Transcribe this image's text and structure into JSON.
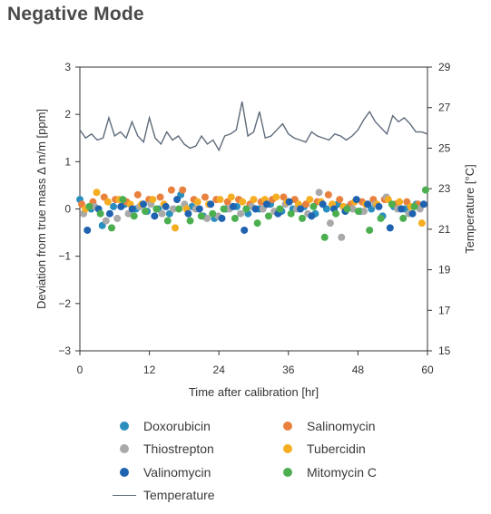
{
  "page_title": "Negative Mode",
  "chart_data": {
    "type": "scatter",
    "xlabel": "Time after calibration [hr]",
    "ylabel": "Deviation from true mass Δ m/m [ppm]",
    "y2label": "Temperature [°C]",
    "xlim": [
      0,
      60
    ],
    "ylim": [
      -3,
      3
    ],
    "y2lim": [
      15,
      29
    ],
    "xticks": [
      "0",
      "12",
      "24",
      "36",
      "48",
      "60"
    ],
    "yticks": [
      "3",
      "2",
      "1",
      "0",
      "−1",
      "−2",
      "−3"
    ],
    "y2ticks": [
      "29",
      "27",
      "25",
      "23",
      "21",
      "19",
      "17",
      "15"
    ],
    "series": [
      {
        "name": "Doxorubicin",
        "color": "#2a8fbf",
        "values": [
          0.2,
          0.0,
          -0.35,
          0.05,
          0.1,
          0.0,
          -0.05,
          0.0,
          -0.1,
          0.3,
          0.05,
          -0.15,
          -0.2,
          0.0,
          0.05,
          -0.1,
          0.0,
          0.1,
          -0.05,
          0.0,
          0.05,
          -0.1,
          0.0,
          0.1,
          0.05,
          -0.05,
          0.0,
          -0.15,
          0.05,
          0.0,
          0.1
        ]
      },
      {
        "name": "Salinomycin",
        "color": "#e8803e",
        "values": [
          0.1,
          0.15,
          0.25,
          0.2,
          0.15,
          0.3,
          0.2,
          0.25,
          0.4,
          0.4,
          0.2,
          0.25,
          0.2,
          0.15,
          0.2,
          0.1,
          0.15,
          0.2,
          0.25,
          0.2,
          0.1,
          0.15,
          0.3,
          0.2,
          0.1,
          0.15,
          0.2,
          0.2,
          0.1,
          0.15,
          0.1
        ]
      },
      {
        "name": "Thiostrepton",
        "color": "#a9a9a9",
        "values": [
          -0.1,
          0.05,
          -0.25,
          -0.2,
          -0.1,
          0.05,
          0.1,
          -0.1,
          0.0,
          0.1,
          0.0,
          -0.2,
          -0.15,
          0.0,
          -0.1,
          0.05,
          0.0,
          -0.05,
          0.1,
          0.0,
          -0.1,
          0.35,
          -0.3,
          -0.6,
          0.0,
          -0.05,
          0.1,
          0.25,
          0.0,
          -0.1,
          0.0
        ]
      },
      {
        "name": "Tubercidin",
        "color": "#f5ad22",
        "values": [
          0.0,
          0.35,
          0.15,
          0.2,
          0.1,
          0.1,
          0.2,
          0.1,
          -0.4,
          0.0,
          0.15,
          0.1,
          0.2,
          0.25,
          0.15,
          0.2,
          0.2,
          0.25,
          0.15,
          0.1,
          0.2,
          0.15,
          0.1,
          0.05,
          0.15,
          0.1,
          0.1,
          0.2,
          0.15,
          0.05,
          -0.3
        ]
      },
      {
        "name": "Valinomycin",
        "color": "#1f63b0",
        "values": [
          -0.45,
          0.0,
          -0.1,
          0.05,
          0.0,
          0.1,
          -0.15,
          0.05,
          0.2,
          -0.1,
          0.0,
          0.1,
          -0.2,
          0.05,
          -0.45,
          0.0,
          0.1,
          -0.1,
          0.15,
          0.0,
          -0.15,
          0.1,
          0.0,
          -0.05,
          0.2,
          0.1,
          0.05,
          -0.4,
          0.0,
          -0.1,
          0.1
        ]
      },
      {
        "name": "Mitomycin C",
        "color": "#4caf4f",
        "values": [
          0.05,
          -0.1,
          -0.4,
          0.2,
          -0.15,
          -0.05,
          0.0,
          -0.25,
          0.0,
          -0.25,
          -0.15,
          -0.1,
          0.0,
          -0.2,
          0.0,
          -0.3,
          -0.15,
          0.0,
          -0.1,
          -0.2,
          0.05,
          -0.6,
          -0.1,
          0.0,
          -0.05,
          -0.45,
          -0.2,
          0.1,
          -0.2,
          0.05,
          0.4
        ]
      },
      {
        "name": "Temperature",
        "color": "#5f6b7b",
        "type": "line",
        "x": [
          0,
          1,
          2,
          3,
          4,
          5,
          6,
          7,
          8,
          9,
          10,
          11,
          12,
          13,
          14,
          15,
          16,
          17,
          18,
          19,
          20,
          21,
          22,
          23,
          24,
          25,
          26,
          27,
          28,
          29,
          30,
          31,
          32,
          33,
          34,
          35,
          36,
          37,
          38,
          39,
          40,
          41,
          42,
          43,
          44,
          45,
          46,
          47,
          48,
          49,
          50,
          51,
          52,
          53,
          54,
          55,
          56,
          57,
          58,
          59,
          60
        ],
        "values": [
          25.9,
          25.5,
          25.7,
          25.4,
          25.5,
          26.5,
          25.6,
          25.8,
          25.5,
          26.3,
          25.6,
          25.3,
          26.5,
          25.5,
          25.2,
          25.8,
          25.4,
          25.6,
          25.2,
          25.0,
          25.1,
          25.6,
          25.2,
          25.4,
          24.9,
          25.6,
          25.7,
          25.9,
          27.3,
          25.6,
          25.8,
          26.8,
          25.5,
          25.6,
          25.9,
          26.2,
          25.7,
          25.5,
          25.4,
          25.3,
          25.8,
          25.6,
          25.5,
          25.4,
          25.7,
          25.6,
          25.4,
          25.6,
          25.9,
          26.4,
          26.8,
          26.3,
          26.0,
          25.7,
          26.6,
          26.3,
          26.5,
          26.2,
          25.8,
          25.8,
          25.7
        ]
      }
    ]
  }
}
